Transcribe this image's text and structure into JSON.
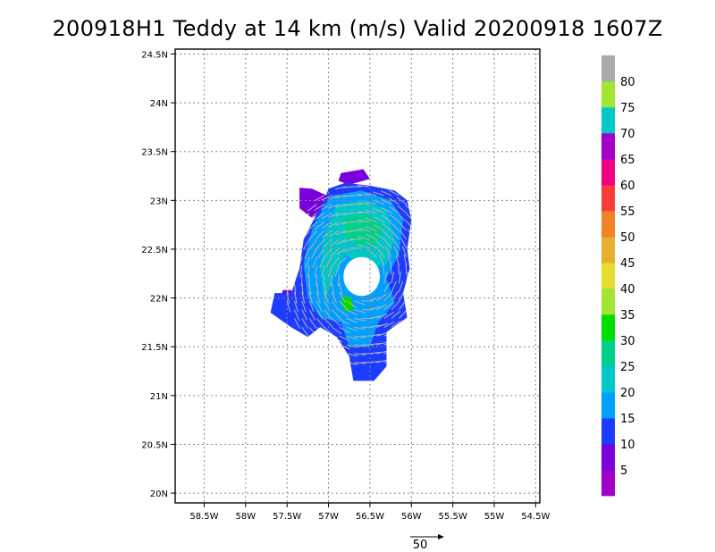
{
  "chart_data": {
    "type": "heatmap",
    "title": "200918H1 Teddy at 14 km (m/s) Valid 20200918  1607Z",
    "x_ticks": [
      "58.5W",
      "58W",
      "57.5W",
      "57W",
      "56.5W",
      "56W",
      "55.5W",
      "55W",
      "54.5W"
    ],
    "y_ticks": [
      "24.5N",
      "24N",
      "23.5N",
      "23N",
      "22.5N",
      "22N",
      "21.5N",
      "21N",
      "20.5N",
      "20N"
    ],
    "xlim": [
      -58.85,
      -54.45
    ],
    "ylim": [
      19.9,
      24.55
    ],
    "grid": true,
    "colorbar": {
      "placement": "right",
      "labels": [
        "5",
        "10",
        "15",
        "20",
        "25",
        "30",
        "35",
        "40",
        "45",
        "50",
        "55",
        "60",
        "65",
        "70",
        "75",
        "80"
      ],
      "bins": [
        {
          "from": 0,
          "to": 5,
          "color": "#a000c8"
        },
        {
          "from": 5,
          "to": 10,
          "color": "#7a00dc"
        },
        {
          "from": 10,
          "to": 15,
          "color": "#1e3cff"
        },
        {
          "from": 15,
          "to": 20,
          "color": "#00a0ff"
        },
        {
          "from": 20,
          "to": 25,
          "color": "#00c8c8"
        },
        {
          "from": 25,
          "to": 30,
          "color": "#00d28c"
        },
        {
          "from": 30,
          "to": 35,
          "color": "#00dc00"
        },
        {
          "from": 35,
          "to": 40,
          "color": "#a0e632"
        },
        {
          "from": 40,
          "to": 45,
          "color": "#e6dc32"
        },
        {
          "from": 45,
          "to": 50,
          "color": "#e6af2d"
        },
        {
          "from": 50,
          "to": 55,
          "color": "#f08228"
        },
        {
          "from": 55,
          "to": 60,
          "color": "#fa3c3c"
        },
        {
          "from": 60,
          "to": 65,
          "color": "#f00082"
        },
        {
          "from": 65,
          "to": 70,
          "color": "#a000c8"
        },
        {
          "from": 70,
          "to": 75,
          "color": "#00c8c8"
        },
        {
          "from": 75,
          "to": 80,
          "color": "#a0e632"
        },
        {
          "from": 80,
          "to": 85,
          "color": "#aaaaaa"
        }
      ]
    },
    "regions": [
      {
        "name": "purple-ne",
        "value": 8,
        "color": "#7a00dc",
        "polygon": [
          [
            -56.85,
            23.28
          ],
          [
            -56.58,
            23.32
          ],
          [
            -56.5,
            23.22
          ],
          [
            -56.75,
            23.16
          ],
          [
            -56.88,
            23.2
          ]
        ]
      },
      {
        "name": "purple-nw",
        "value": 8,
        "color": "#7a00dc",
        "polygon": [
          [
            -57.35,
            23.13
          ],
          [
            -57.2,
            23.12
          ],
          [
            -57.02,
            23.05
          ],
          [
            -57.05,
            22.9
          ],
          [
            -57.2,
            22.82
          ],
          [
            -57.35,
            22.92
          ]
        ]
      },
      {
        "name": "purple-w",
        "value": 8,
        "color": "#7a00dc",
        "polygon": [
          [
            -57.55,
            22.08
          ],
          [
            -57.45,
            22.08
          ],
          [
            -57.42,
            22.0
          ],
          [
            -57.5,
            21.95
          ],
          [
            -57.58,
            22.0
          ]
        ]
      },
      {
        "name": "blue-ring",
        "value": 13,
        "color": "#1e3cff",
        "polygon": [
          [
            -57.0,
            23.12
          ],
          [
            -56.8,
            23.18
          ],
          [
            -56.5,
            23.15
          ],
          [
            -56.2,
            23.1
          ],
          [
            -56.05,
            23.0
          ],
          [
            -56.0,
            22.8
          ],
          [
            -56.05,
            22.5
          ],
          [
            -56.02,
            22.3
          ],
          [
            -56.1,
            22.05
          ],
          [
            -56.05,
            21.8
          ],
          [
            -56.3,
            21.65
          ],
          [
            -56.3,
            21.3
          ],
          [
            -56.45,
            21.15
          ],
          [
            -56.7,
            21.15
          ],
          [
            -56.75,
            21.4
          ],
          [
            -56.9,
            21.6
          ],
          [
            -57.1,
            21.7
          ],
          [
            -57.25,
            21.6
          ],
          [
            -57.45,
            21.7
          ],
          [
            -57.7,
            21.85
          ],
          [
            -57.65,
            22.05
          ],
          [
            -57.45,
            22.05
          ],
          [
            -57.35,
            22.3
          ],
          [
            -57.3,
            22.6
          ],
          [
            -57.15,
            22.85
          ],
          [
            -57.05,
            23.0
          ]
        ]
      },
      {
        "name": "lightblue",
        "value": 17,
        "color": "#00a0ff",
        "polygon": [
          [
            -56.95,
            23.05
          ],
          [
            -56.6,
            23.1
          ],
          [
            -56.25,
            23.0
          ],
          [
            -56.1,
            22.8
          ],
          [
            -56.15,
            22.45
          ],
          [
            -56.3,
            22.2
          ],
          [
            -56.2,
            21.95
          ],
          [
            -56.4,
            21.75
          ],
          [
            -56.5,
            21.5
          ],
          [
            -56.75,
            21.5
          ],
          [
            -56.85,
            21.75
          ],
          [
            -57.1,
            21.8
          ],
          [
            -57.25,
            22.0
          ],
          [
            -57.3,
            22.35
          ],
          [
            -57.2,
            22.7
          ],
          [
            -57.05,
            22.95
          ]
        ]
      },
      {
        "name": "cyan",
        "value": 22,
        "color": "#00c8c8",
        "polygon": [
          [
            -56.9,
            22.95
          ],
          [
            -56.6,
            23.0
          ],
          [
            -56.3,
            22.9
          ],
          [
            -56.2,
            22.6
          ],
          [
            -56.3,
            22.35
          ],
          [
            -56.55,
            22.3
          ],
          [
            -56.8,
            22.45
          ],
          [
            -56.95,
            22.2
          ],
          [
            -57.05,
            21.95
          ],
          [
            -57.1,
            22.3
          ],
          [
            -57.05,
            22.65
          ]
        ]
      },
      {
        "name": "teal-core",
        "value": 27,
        "color": "#00d28c",
        "polygon": [
          [
            -56.8,
            22.82
          ],
          [
            -56.55,
            22.86
          ],
          [
            -56.35,
            22.75
          ],
          [
            -56.4,
            22.55
          ],
          [
            -56.65,
            22.55
          ],
          [
            -56.82,
            22.65
          ]
        ]
      },
      {
        "name": "green-spot",
        "value": 31,
        "color": "#00dc00",
        "polygon": [
          [
            -56.82,
            22.02
          ],
          [
            -56.72,
            22.0
          ],
          [
            -56.7,
            21.88
          ],
          [
            -56.8,
            21.86
          ],
          [
            -56.85,
            21.95
          ]
        ]
      }
    ],
    "eye": {
      "lon": -56.6,
      "lat": 22.22,
      "r_lon": 0.22,
      "r_lat": 0.2
    },
    "vector_scale": {
      "label": "50",
      "speed": 50
    }
  }
}
